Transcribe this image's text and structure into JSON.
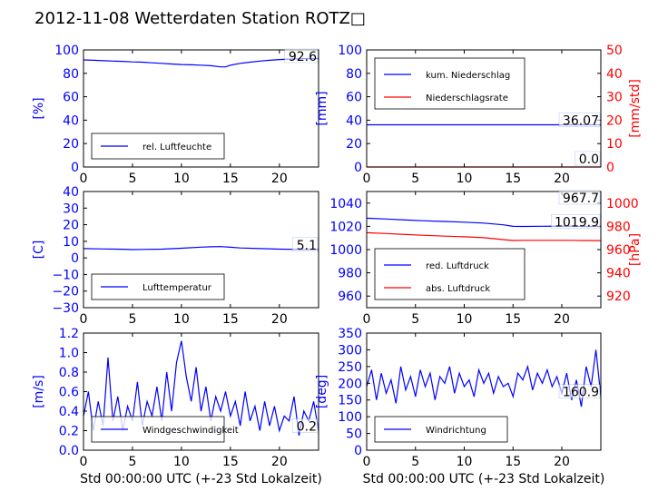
{
  "page_title": "2012-11-08 Wetterdaten Station ROTZ□",
  "colors": {
    "blue": "#0000ff",
    "red": "#ff0000",
    "black": "#000000"
  },
  "chart_data": [
    {
      "id": "humidity",
      "type": "line",
      "ylabel": "[%]",
      "ylim": [
        0,
        100
      ],
      "yticks": [
        "0",
        "20",
        "40",
        "60",
        "80",
        "100"
      ],
      "xlim": [
        0,
        24
      ],
      "xticks": [
        "0",
        "5",
        "10",
        "15",
        "20"
      ],
      "xlabel": "",
      "annotations": [
        {
          "text": "92.6",
          "x": 24,
          "y": 92.6
        }
      ],
      "legend": {
        "position": "bottom-left",
        "entries": [
          {
            "label": "rel. Luftfeuchte",
            "color": "#0000ff"
          }
        ]
      },
      "series": [
        {
          "name": "rel. Luftfeuchte",
          "color": "#0000ff",
          "x": [
            0,
            1,
            2,
            3,
            4,
            5,
            6,
            7,
            8,
            9,
            10,
            11,
            12,
            13,
            14,
            14.5,
            15,
            16,
            17,
            18,
            19,
            20,
            21,
            22,
            23,
            24
          ],
          "y": [
            91.5,
            91.2,
            90.8,
            90.5,
            90.2,
            89.8,
            89.5,
            89,
            88.5,
            88,
            87.5,
            87.3,
            87,
            86.5,
            85.5,
            85.5,
            87,
            88.5,
            89.5,
            90.5,
            91.2,
            91.8,
            92.2,
            92.5,
            92.6,
            92.6
          ]
        }
      ]
    },
    {
      "id": "precip",
      "type": "line",
      "ylabel": "[mm]",
      "ylim": [
        0,
        100
      ],
      "yticks": [
        "0",
        "20",
        "40",
        "60",
        "80",
        "100"
      ],
      "y2label": "[mm/std]",
      "y2lim": [
        0,
        50
      ],
      "y2ticks": [
        "0",
        "10",
        "20",
        "30",
        "40",
        "50"
      ],
      "xlim": [
        0,
        24
      ],
      "xticks": [
        "0",
        "5",
        "10",
        "15",
        "20"
      ],
      "xlabel": "",
      "annotations": [
        {
          "text": "36.07",
          "x": 24,
          "y": 36.07
        },
        {
          "text": "0.0",
          "x": 24,
          "y": 0
        }
      ],
      "legend": {
        "position": "top-left",
        "entries": [
          {
            "label": "kum. Niederschlag",
            "color": "#0000ff"
          },
          {
            "label": "Niederschlagsrate",
            "color": "#ff0000"
          }
        ]
      },
      "series": [
        {
          "name": "kum. Niederschlag",
          "color": "#0000ff",
          "axis": "left",
          "x": [
            0,
            24
          ],
          "y": [
            36.07,
            36.07
          ]
        },
        {
          "name": "Niederschlagsrate",
          "color": "#ff0000",
          "axis": "right",
          "x": [
            0,
            24
          ],
          "y": [
            0,
            0
          ]
        }
      ]
    },
    {
      "id": "temperature",
      "type": "line",
      "ylabel": "[C]",
      "ylim": [
        -30,
        40
      ],
      "yticks": [
        "−30",
        "−20",
        "−10",
        "0",
        "10",
        "20",
        "30",
        "40"
      ],
      "xlim": [
        0,
        24
      ],
      "xticks": [
        "0",
        "5",
        "10",
        "15",
        "20"
      ],
      "xlabel": "",
      "annotations": [
        {
          "text": "5.1",
          "x": 24,
          "y": 5.1
        }
      ],
      "legend": {
        "position": "bottom-left",
        "entries": [
          {
            "label": "Lufttemperatur",
            "color": "#0000ff"
          }
        ]
      },
      "series": [
        {
          "name": "Lufttemperatur",
          "color": "#0000ff",
          "x": [
            0,
            2,
            4,
            5,
            6,
            8,
            10,
            12,
            13,
            14,
            15,
            16,
            18,
            20,
            22,
            24
          ],
          "y": [
            5.6,
            5.4,
            5.2,
            5.0,
            5.1,
            5.3,
            5.8,
            6.5,
            6.7,
            6.8,
            6.4,
            6.0,
            5.6,
            5.3,
            5.1,
            5.1
          ]
        }
      ]
    },
    {
      "id": "pressure",
      "type": "line",
      "ylabel": "",
      "ylim": [
        950,
        1050
      ],
      "yticks": [
        "960",
        "980",
        "1000",
        "1020",
        "1040"
      ],
      "y2label": "[hPa]",
      "y2lim": [
        910,
        1010
      ],
      "y2ticks": [
        "920",
        "940",
        "960",
        "980",
        "1000"
      ],
      "xlim": [
        0,
        24
      ],
      "xticks": [
        "0",
        "5",
        "10",
        "15",
        "20"
      ],
      "xlabel": "",
      "annotations": [
        {
          "text": "1019.9",
          "x": 24,
          "y": 1019.9
        },
        {
          "text": "967.7",
          "x": 24,
          "y": 1007.3
        }
      ],
      "legend": {
        "position": "bottom-left",
        "entries": [
          {
            "label": "red. Luftdruck",
            "color": "#0000ff"
          },
          {
            "label": "abs. Luftdruck",
            "color": "#ff0000"
          }
        ]
      },
      "series": [
        {
          "name": "red. Luftdruck",
          "color": "#0000ff",
          "axis": "left",
          "x": [
            0,
            2,
            4,
            6,
            8,
            10,
            12,
            14,
            15,
            16,
            18,
            20,
            22,
            24
          ],
          "y": [
            1027,
            1026.3,
            1025.5,
            1024.8,
            1024.2,
            1023.6,
            1022.8,
            1021.3,
            1020,
            1019.9,
            1020.1,
            1020.2,
            1020,
            1019.9
          ]
        },
        {
          "name": "abs. Luftdruck",
          "color": "#ff0000",
          "axis": "right",
          "x": [
            0,
            2,
            4,
            6,
            8,
            10,
            12,
            14,
            15,
            16,
            18,
            20,
            22,
            24
          ],
          "y": [
            974.5,
            973.8,
            973,
            972.3,
            971.6,
            971,
            970.2,
            968.6,
            967.8,
            968,
            968,
            968,
            967.8,
            967.7
          ]
        }
      ]
    },
    {
      "id": "wind_speed",
      "type": "line",
      "ylabel": "[m/s]",
      "ylim": [
        0,
        1.2
      ],
      "yticks": [
        "0.0",
        "0.2",
        "0.4",
        "0.6",
        "0.8",
        "1.0",
        "1.2"
      ],
      "xlim": [
        0,
        24
      ],
      "xticks": [
        "0",
        "5",
        "10",
        "15",
        "20"
      ],
      "xlabel": "Std 00:00:00 UTC (+-23 Std Lokalzeit)",
      "annotations": [
        {
          "text": "0.2",
          "x": 24,
          "y": 0.2
        }
      ],
      "legend": {
        "position": "bottom-left",
        "entries": [
          {
            "label": "Windgeschwindigkeit",
            "color": "#0000ff"
          }
        ]
      },
      "series": [
        {
          "name": "Windgeschwindigkeit",
          "color": "#0000ff",
          "x": [
            0,
            0.5,
            1,
            1.5,
            2,
            2.5,
            3,
            3.5,
            4,
            4.5,
            5,
            5.5,
            6,
            6.5,
            7,
            7.5,
            8,
            8.5,
            9,
            9.5,
            10,
            10.5,
            11,
            11.5,
            12,
            12.5,
            13,
            13.5,
            14,
            14.5,
            15,
            15.5,
            16,
            16.5,
            17,
            17.5,
            18,
            18.5,
            19,
            19.5,
            20,
            20.5,
            21,
            21.5,
            22,
            22.5,
            23,
            23.5,
            24
          ],
          "y": [
            0.35,
            0.6,
            0.2,
            0.5,
            0.25,
            0.95,
            0.3,
            0.55,
            0.2,
            0.45,
            0.3,
            0.7,
            0.25,
            0.5,
            0.35,
            0.65,
            0.3,
            0.8,
            0.4,
            0.9,
            1.12,
            0.75,
            0.5,
            0.85,
            0.4,
            0.65,
            0.3,
            0.55,
            0.4,
            0.6,
            0.35,
            0.5,
            0.25,
            0.6,
            0.3,
            0.45,
            0.2,
            0.5,
            0.25,
            0.45,
            0.2,
            0.35,
            0.3,
            0.55,
            0.15,
            0.4,
            0.3,
            0.5,
            0.2
          ]
        }
      ]
    },
    {
      "id": "wind_dir",
      "type": "line",
      "ylabel": "[deg]",
      "ylim": [
        0,
        350
      ],
      "yticks": [
        "0",
        "50",
        "100",
        "150",
        "200",
        "250",
        "300",
        "350"
      ],
      "xlim": [
        0,
        24
      ],
      "xticks": [
        "0",
        "5",
        "10",
        "15",
        "20"
      ],
      "xlabel": "Std 00:00:00 UTC (+-23 Std Lokalzeit)",
      "annotations": [
        {
          "text": "160.9",
          "x": 24,
          "y": 160.9
        }
      ],
      "legend": {
        "position": "bottom-left",
        "entries": [
          {
            "label": "Windrichtung",
            "color": "#0000ff"
          }
        ]
      },
      "series": [
        {
          "name": "Windrichtung",
          "color": "#0000ff",
          "x": [
            0,
            0.5,
            1,
            1.5,
            2,
            2.5,
            3,
            3.5,
            4,
            4.5,
            5,
            5.5,
            6,
            6.5,
            7,
            7.5,
            8,
            8.5,
            9,
            9.5,
            10,
            10.5,
            11,
            11.5,
            12,
            12.5,
            13,
            13.5,
            14,
            14.5,
            15,
            15.5,
            16,
            16.5,
            17,
            17.5,
            18,
            18.5,
            19,
            19.5,
            20,
            20.5,
            21,
            21.5,
            22,
            22.5,
            23,
            23.5,
            24
          ],
          "y": [
            190,
            240,
            150,
            230,
            170,
            210,
            140,
            250,
            180,
            220,
            160,
            240,
            190,
            230,
            150,
            220,
            200,
            250,
            170,
            230,
            190,
            210,
            160,
            240,
            200,
            230,
            170,
            220,
            190,
            200,
            160,
            230,
            210,
            250,
            180,
            230,
            200,
            240,
            190,
            220,
            170,
            230,
            150,
            210,
            130,
            250,
            190,
            300,
            160.9
          ]
        }
      ]
    }
  ]
}
